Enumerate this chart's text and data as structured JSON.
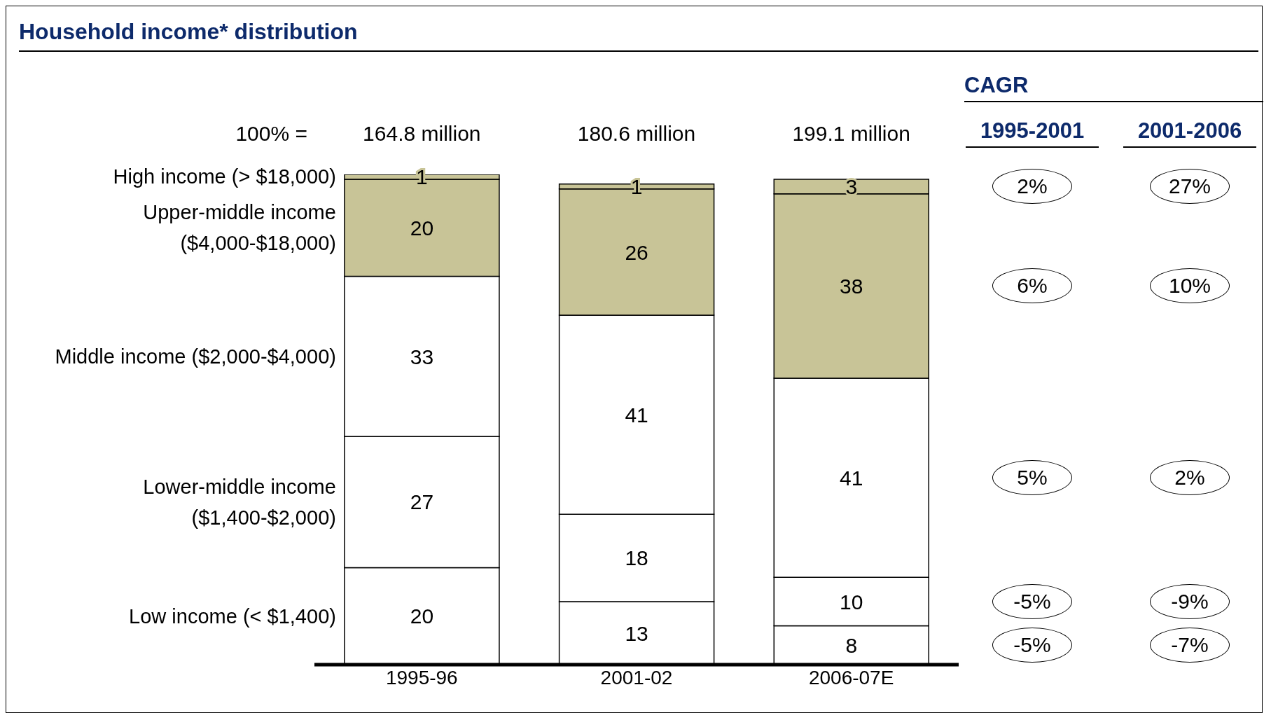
{
  "chart_data": {
    "type": "bar",
    "title": "Household income* distribution",
    "stacked": true,
    "data_labels": true,
    "categories": [
      "1995-96",
      "2001-02",
      "2006-07E"
    ],
    "series": [
      {
        "name": "Low income (< $1,400)",
        "color": "#ffffff",
        "values": [
          20,
          13,
          8
        ]
      },
      {
        "name": "Lower-middle income ($1,400-$2,000)",
        "color": "#ffffff",
        "values": [
          27,
          18,
          10
        ]
      },
      {
        "name": "Middle income ($2,000-$4,000)",
        "color": "#ffffff",
        "values": [
          33,
          41,
          41
        ]
      },
      {
        "name": "Upper-middle income ($4,000-$18,000)",
        "color": "#c8c497",
        "values": [
          20,
          26,
          38
        ]
      },
      {
        "name": "High income (> $18,000)",
        "color": "#c8c497",
        "values": [
          1,
          1,
          3
        ]
      }
    ],
    "annotations": [
      "100% =",
      "164.8 million",
      "180.6 million",
      "199.1 million",
      "CAGR",
      "1995-2001",
      "2001-2006",
      "2%",
      "27%",
      "6%",
      "10%",
      "5%",
      "2%",
      "-5%",
      "-9%",
      "-5%",
      "-7%"
    ]
  }
}
